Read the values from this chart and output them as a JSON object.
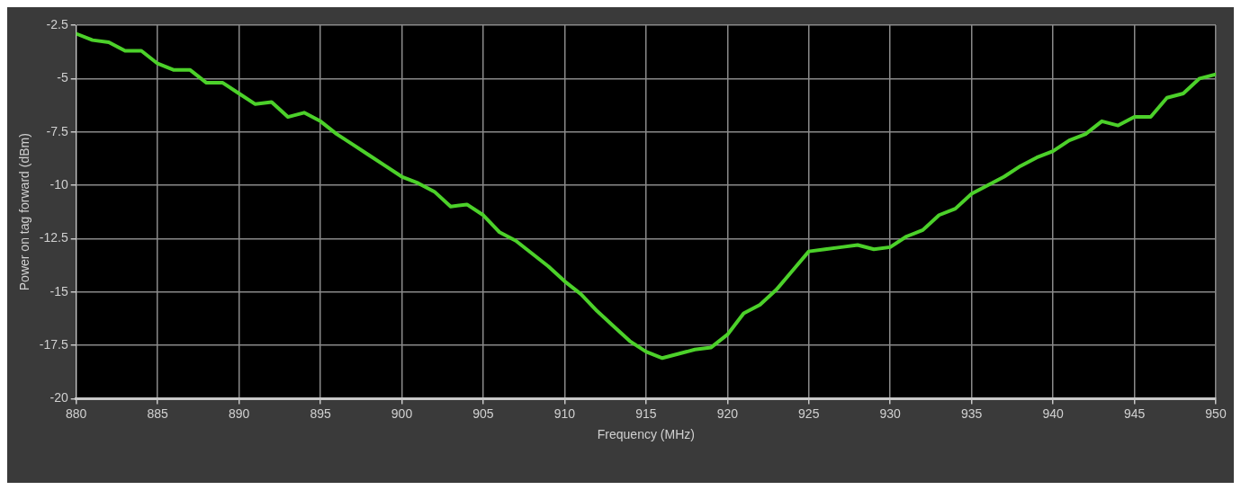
{
  "chart_data": {
    "type": "line",
    "xlabel": "Frequency (MHz)",
    "ylabel": "Power on tag forward (dBm)",
    "x": [
      880,
      881,
      882,
      883,
      884,
      885,
      886,
      887,
      888,
      889,
      890,
      891,
      892,
      893,
      894,
      895,
      896,
      897,
      898,
      899,
      900,
      901,
      902,
      903,
      904,
      905,
      906,
      907,
      908,
      909,
      910,
      911,
      912,
      913,
      914,
      915,
      916,
      917,
      918,
      919,
      920,
      921,
      922,
      923,
      924,
      925,
      926,
      927,
      928,
      929,
      930,
      931,
      932,
      933,
      934,
      935,
      936,
      937,
      938,
      939,
      940,
      941,
      942,
      943,
      944,
      945,
      946,
      947,
      948,
      949,
      950
    ],
    "series": [
      {
        "color": "#4cd12a",
        "values": [
          -2.9,
          -3.2,
          -3.3,
          -3.7,
          -3.7,
          -4.3,
          -4.6,
          -4.6,
          -5.2,
          -5.2,
          -5.7,
          -6.2,
          -6.1,
          -6.8,
          -6.6,
          -7.0,
          -7.6,
          -8.1,
          -8.6,
          -9.1,
          -9.6,
          -9.9,
          -10.3,
          -11.0,
          -10.9,
          -11.4,
          -12.2,
          -12.6,
          -13.2,
          -13.8,
          -14.5,
          -15.1,
          -15.9,
          -16.6,
          -17.3,
          -17.8,
          -18.1,
          -17.9,
          -17.7,
          -17.6,
          -17.0,
          -16.0,
          -15.6,
          -14.9,
          -14.0,
          -13.1,
          -13.0,
          -12.9,
          -12.8,
          -13.0,
          -12.9,
          -12.4,
          -12.1,
          -11.4,
          -11.1,
          -10.4,
          -10.0,
          -9.6,
          -9.1,
          -8.7,
          -8.4,
          -7.9,
          -7.6,
          -7.0,
          -7.2,
          -6.8,
          -6.8,
          -5.9,
          -5.7,
          -5.0,
          -4.8
        ]
      }
    ],
    "xlim": [
      880,
      950
    ],
    "xticks": [
      880,
      885,
      890,
      895,
      900,
      905,
      910,
      915,
      920,
      925,
      930,
      935,
      940,
      945,
      950
    ],
    "ylim": [
      -20,
      -2.5
    ],
    "yticks": [
      -20,
      -17.5,
      -15,
      -12.5,
      -10,
      -7.5,
      -5,
      -2.5
    ],
    "grid": true,
    "legend": false,
    "marker": "none",
    "line_style": "solid"
  }
}
